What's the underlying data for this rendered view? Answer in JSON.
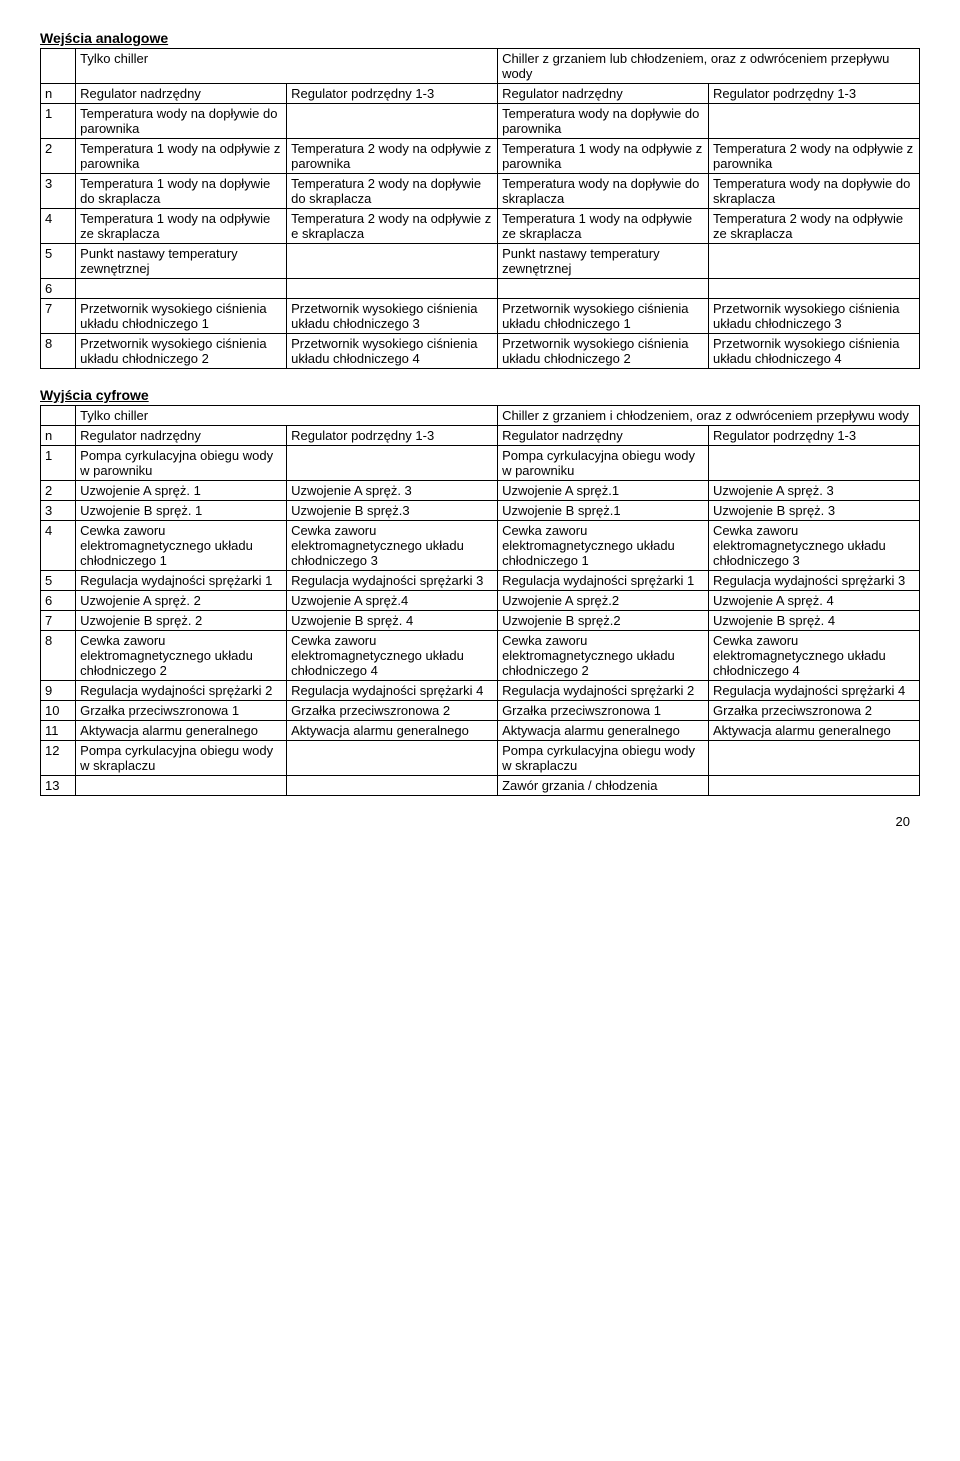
{
  "page_number": "20",
  "section1": {
    "title": "Wejścia analogowe",
    "header_row1": [
      "",
      "Tylko chiller",
      "",
      "Chiller z grzaniem lub chłodzeniem, oraz z odwróceniem przepływu wody",
      ""
    ],
    "header_row2": [
      "n",
      "Regulator nadrzędny",
      "Regulator podrzędny 1-3",
      "Regulator nadrzędny",
      "Regulator podrzędny 1-3"
    ],
    "rows": [
      [
        "1",
        "Temperatura wody na dopływie do parownika",
        "",
        "Temperatura wody na dopływie do parownika",
        ""
      ],
      [
        "2",
        "Temperatura 1 wody na odpływie z parownika",
        "Temperatura 2 wody na odpływie z parownika",
        "Temperatura 1 wody na odpływie z parownika",
        "Temperatura 2 wody na odpływie z parownika"
      ],
      [
        "3",
        "Temperatura 1 wody na dopływie do skraplacza",
        "Temperatura 2 wody na dopływie do skraplacza",
        "Temperatura wody na dopływie do skraplacza",
        "Temperatura wody na dopływie do skraplacza"
      ],
      [
        "4",
        "Temperatura 1 wody na odpływie ze skraplacza",
        "Temperatura 2 wody na odpływie z e skraplacza",
        "Temperatura 1 wody na odpływie ze skraplacza",
        "Temperatura 2 wody na odpływie ze skraplacza"
      ],
      [
        "5",
        "Punkt nastawy temperatury zewnętrznej",
        "",
        "Punkt nastawy temperatury zewnętrznej",
        ""
      ],
      [
        "6",
        "",
        "",
        "",
        ""
      ],
      [
        "7",
        "Przetwornik wysokiego ciśnienia układu chłodniczego 1",
        "Przetwornik wysokiego ciśnienia układu chłodniczego 3",
        "Przetwornik wysokiego ciśnienia układu chłodniczego 1",
        "Przetwornik wysokiego ciśnienia układu chłodniczego 3"
      ],
      [
        "8",
        "Przetwornik wysokiego ciśnienia układu chłodniczego 2",
        "Przetwornik wysokiego ciśnienia układu chłodniczego 4",
        "Przetwornik wysokiego ciśnienia układu chłodniczego 2",
        "Przetwornik wysokiego ciśnienia układu chłodniczego 4"
      ]
    ]
  },
  "section2": {
    "title": "Wyjścia cyfrowe",
    "header_row1": [
      "",
      "Tylko chiller",
      "",
      "Chiller z grzaniem i chłodzeniem, oraz z odwróceniem przepływu wody",
      ""
    ],
    "header_row2": [
      "n",
      "Regulator nadrzędny",
      "Regulator podrzędny 1-3",
      "Regulator nadrzędny",
      "Regulator podrzędny 1-3"
    ],
    "rows": [
      [
        "1",
        "Pompa cyrkulacyjna obiegu wody w parowniku",
        "",
        "Pompa cyrkulacyjna obiegu wody w parowniku",
        ""
      ],
      [
        "2",
        "Uzwojenie A spręż. 1",
        "Uzwojenie A spręż. 3",
        "Uzwojenie A spręż.1",
        "Uzwojenie A spręż. 3"
      ],
      [
        "3",
        "Uzwojenie B spręż. 1",
        "Uzwojenie B spręż.3",
        "Uzwojenie B spręż.1",
        "Uzwojenie B spręż. 3"
      ],
      [
        "4",
        "Cewka zaworu elektromagnetycznego układu chłodniczego 1",
        "Cewka zaworu elektromagnetycznego układu chłodniczego 3",
        "Cewka zaworu elektromagnetycznego układu chłodniczego 1",
        "Cewka zaworu elektromagnetycznego układu chłodniczego 3"
      ],
      [
        "5",
        "Regulacja wydajności sprężarki 1",
        "Regulacja wydajności sprężarki 3",
        "Regulacja wydajności sprężarki 1",
        "Regulacja wydajności sprężarki 3"
      ],
      [
        "6",
        "Uzwojenie A spręż. 2",
        "Uzwojenie A spręż.4",
        "Uzwojenie A spręż.2",
        "Uzwojenie A spręż. 4"
      ],
      [
        "7",
        "Uzwojenie B spręż. 2",
        "Uzwojenie B spręż. 4",
        "Uzwojenie B spręż.2",
        "Uzwojenie B spręż. 4"
      ],
      [
        "8",
        "Cewka zaworu elektromagnetycznego układu chłodniczego 2",
        "Cewka zaworu elektromagnetycznego układu chłodniczego 4",
        "Cewka zaworu elektromagnetycznego układu chłodniczego 2",
        "Cewka zaworu elektromagnetycznego układu chłodniczego 4"
      ],
      [
        "9",
        "Regulacja wydajności sprężarki 2",
        "Regulacja wydajności sprężarki 4",
        "Regulacja wydajności sprężarki 2",
        "Regulacja wydajności sprężarki 4"
      ],
      [
        "10",
        "Grzałka przeciwszronowa 1",
        "Grzałka przeciwszronowa 2",
        "Grzałka przeciwszronowa 1",
        "Grzałka przeciwszronowa 2"
      ],
      [
        "11",
        "Aktywacja alarmu generalnego",
        "Aktywacja alarmu generalnego",
        "Aktywacja alarmu generalnego",
        "Aktywacja alarmu generalnego"
      ],
      [
        "12",
        "Pompa cyrkulacyjna obiegu wody w skraplaczu",
        "",
        "Pompa cyrkulacyjna obiegu wody w skraplaczu",
        ""
      ],
      [
        "13",
        "",
        "",
        "Zawór grzania / chłodzenia",
        ""
      ]
    ]
  }
}
